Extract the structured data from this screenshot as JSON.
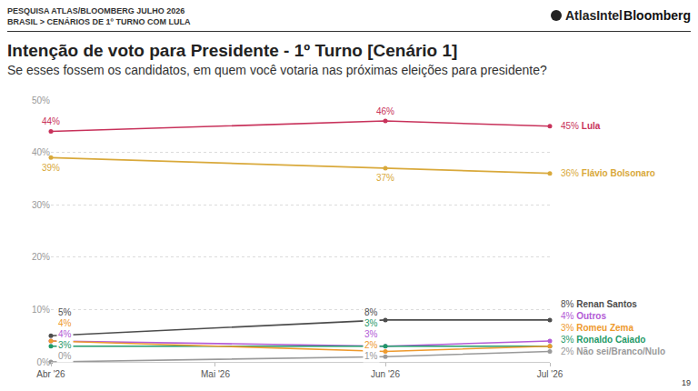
{
  "page": {
    "header": [
      "PESQUISA ATLAS/BLOOMBERG JULHO 2026",
      "BRASIL > CENÁRIOS DE 1º TURNO COM LULA"
    ],
    "logos": [
      "AtlasIntel",
      "Bloomberg"
    ],
    "page_number": "19"
  },
  "chart_data": {
    "type": "line",
    "title": "Intenção de voto para Presidente - 1º Turno [Cenário 1]",
    "subtitle": "Se esses fossem os candidatos, em quem você votaria nas próximas eleições para presidente?",
    "x": [
      "2026-04",
      "2026-06",
      "2026-07"
    ],
    "xlim": [
      "2026-04",
      "2026-07"
    ],
    "xticks": [
      {
        "value": "2026-04",
        "label": "Abr '26"
      },
      {
        "value": "2026-05",
        "label": "Mai '26"
      },
      {
        "value": "2026-06",
        "label": "Jun '26"
      },
      {
        "value": "2026-07",
        "label": "Jul '26"
      }
    ],
    "ylim": [
      0,
      50
    ],
    "yticks": [
      {
        "value": 0,
        "label": "0%"
      },
      {
        "value": 10,
        "label": "10%"
      },
      {
        "value": 20,
        "label": "20%"
      },
      {
        "value": 30,
        "label": "30%"
      },
      {
        "value": 40,
        "label": "40%"
      },
      {
        "value": 50,
        "label": "50%"
      }
    ],
    "grid": true,
    "data_labels": true,
    "marker": "circle",
    "line_style": "solid",
    "series": [
      {
        "name": "Lula",
        "color": "#c8325b",
        "values": [
          44,
          46,
          45
        ],
        "value_labels": [
          "44%",
          "46%",
          "45%"
        ]
      },
      {
        "name": "Flávio Bolsonaro",
        "color": "#d9a93b",
        "values": [
          39,
          37,
          36
        ],
        "value_labels": [
          "39%",
          "37%",
          "36%"
        ]
      },
      {
        "name": "Renan Santos",
        "color": "#4d4d4d",
        "values": [
          5,
          8,
          8
        ],
        "value_labels": [
          "5%",
          "8%",
          "8%"
        ]
      },
      {
        "name": "Outros",
        "color": "#b35cd6",
        "values": [
          4,
          3,
          4
        ],
        "value_labels": [
          "4%",
          "3%",
          "4%"
        ]
      },
      {
        "name": "Ronaldo Caiado",
        "color": "#1f9a68",
        "values": [
          3,
          3,
          3
        ],
        "value_labels": [
          "3%",
          "3%",
          "3%"
        ]
      },
      {
        "name": "Romeu Zema",
        "color": "#ee9a2e",
        "values": [
          4,
          2,
          3
        ],
        "value_labels": [
          "4%",
          "2%",
          "3%"
        ]
      },
      {
        "name": "Não sei/Branco/Nulo",
        "color": "#9a9a9a",
        "values": [
          0,
          1,
          2
        ],
        "value_labels": [
          "0%",
          "1%",
          "2%"
        ]
      }
    ]
  }
}
